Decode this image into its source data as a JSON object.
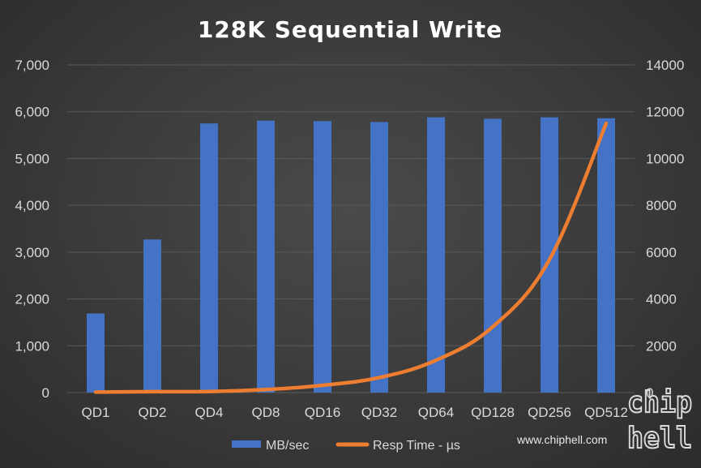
{
  "chart_data": {
    "type": "bar",
    "title": "128K Sequential Write",
    "categories": [
      "QD1",
      "QD2",
      "QD4",
      "QD8",
      "QD16",
      "QD32",
      "QD64",
      "QD128",
      "QD256",
      "QD512"
    ],
    "series": [
      {
        "name": "MB/sec",
        "type": "bar",
        "axis": "left",
        "values": [
          1690,
          3270,
          5750,
          5810,
          5800,
          5780,
          5880,
          5850,
          5880,
          5860
        ]
      },
      {
        "name": "Resp Time - µs",
        "type": "line",
        "axis": "right",
        "values": [
          20,
          40,
          45,
          130,
          310,
          640,
          1380,
          2810,
          5680,
          11500
        ]
      }
    ],
    "y_left": {
      "min": 0,
      "max": 7000,
      "ticks": [
        "0",
        "1,000",
        "2,000",
        "3,000",
        "4,000",
        "5,000",
        "6,000",
        "7,000"
      ]
    },
    "y_right": {
      "min": 0,
      "max": 14000,
      "ticks": [
        "0",
        "2000",
        "4000",
        "6000",
        "8000",
        "10000",
        "12000",
        "14000"
      ]
    },
    "grid": true,
    "legend_position": "bottom",
    "colors": {
      "bar": "#4472c4",
      "line": "#ed7d31"
    }
  },
  "watermark": {
    "url": "www.chiphell.com",
    "logo": "chip hell"
  }
}
